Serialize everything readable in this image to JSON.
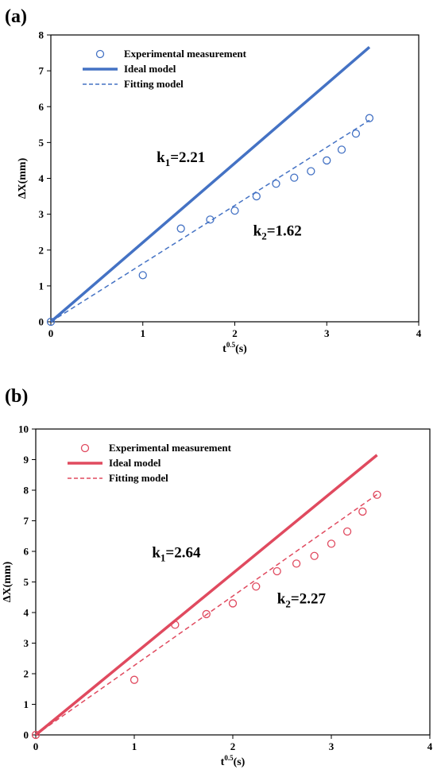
{
  "chart_data": [
    {
      "type": "scatter",
      "panel_label": "(a)",
      "color": "#4472c4",
      "xlabel_base": "t",
      "xlabel_sup": "0.5",
      "xlabel_unit": "(s)",
      "ylabel": "ΔX(mm)",
      "xlim": [
        0,
        4
      ],
      "ylim": [
        0,
        8
      ],
      "xticks": [
        0,
        1,
        2,
        3,
        4
      ],
      "yticks": [
        0,
        1,
        2,
        3,
        4,
        5,
        6,
        7,
        8
      ],
      "legend_position": "top-left",
      "series": [
        {
          "name": "Experimental measurement",
          "kind": "markers",
          "x": [
            0,
            1.0,
            1.414,
            1.732,
            2.0,
            2.236,
            2.449,
            2.646,
            2.828,
            3.0,
            3.162,
            3.317,
            3.464
          ],
          "y": [
            0,
            1.3,
            2.6,
            2.85,
            3.1,
            3.5,
            3.85,
            4.02,
            4.2,
            4.5,
            4.8,
            5.25,
            5.68
          ]
        },
        {
          "name": "Ideal model",
          "kind": "solid",
          "x": [
            0,
            3.464
          ],
          "y": [
            0,
            7.66
          ]
        },
        {
          "name": "Fitting model",
          "kind": "dashed",
          "x": [
            0,
            3.464
          ],
          "y": [
            0,
            5.62
          ]
        }
      ],
      "annotations": [
        {
          "base": "k",
          "sub": "1",
          "value": "=2.21",
          "x": 1.15,
          "y": 4.45
        },
        {
          "base": "k",
          "sub": "2",
          "value": "=1.62",
          "x": 2.2,
          "y": 2.4
        }
      ]
    },
    {
      "type": "scatter",
      "panel_label": "(b)",
      "color": "#e04a5f",
      "xlabel_base": "t",
      "xlabel_sup": "0.5",
      "xlabel_unit": "(s)",
      "ylabel": "ΔX(mm)",
      "xlim": [
        0,
        4
      ],
      "ylim": [
        0,
        10
      ],
      "xticks": [
        0,
        1,
        2,
        3,
        4
      ],
      "yticks": [
        0,
        1,
        2,
        3,
        4,
        5,
        6,
        7,
        8,
        9,
        10
      ],
      "legend_position": "top-left",
      "series": [
        {
          "name": "Experimental measurement",
          "kind": "markers",
          "x": [
            0,
            1.0,
            1.414,
            1.732,
            2.0,
            2.236,
            2.449,
            2.646,
            2.828,
            3.0,
            3.162,
            3.317,
            3.464
          ],
          "y": [
            0,
            1.8,
            3.6,
            3.95,
            4.3,
            4.85,
            5.35,
            5.6,
            5.85,
            6.25,
            6.65,
            7.3,
            7.85
          ]
        },
        {
          "name": "Ideal model",
          "kind": "solid",
          "x": [
            0,
            3.464
          ],
          "y": [
            0,
            9.15
          ]
        },
        {
          "name": "Fitting model",
          "kind": "dashed",
          "x": [
            0,
            3.464
          ],
          "y": [
            0,
            7.86
          ]
        }
      ],
      "annotations": [
        {
          "base": "k",
          "sub": "1",
          "value": "=2.64",
          "x": 1.18,
          "y": 5.8
        },
        {
          "base": "k",
          "sub": "2",
          "value": "=2.27",
          "x": 2.45,
          "y": 4.3
        }
      ]
    }
  ]
}
